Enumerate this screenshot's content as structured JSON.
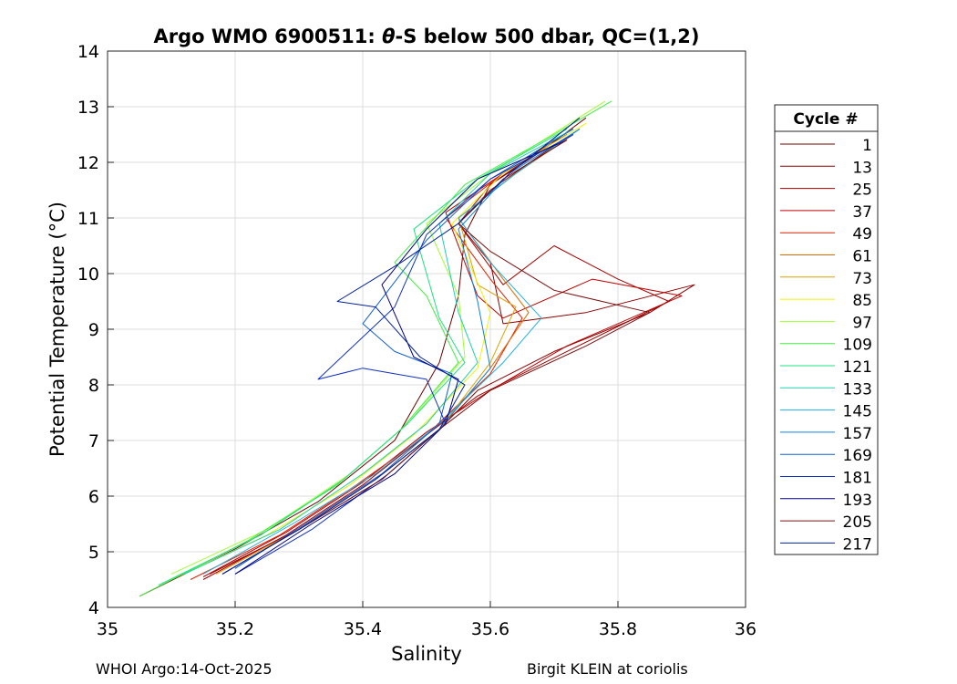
{
  "chart_data": {
    "type": "line",
    "title": "Argo WMO 6900511: θ-S below 500 dbar,  QC=(1,2)",
    "title_parts": {
      "prefix": "Argo WMO 6900511: ",
      "symbol": "θ",
      "suffix": "-S below 500 dbar,  QC=(1,2)"
    },
    "xlabel": "Salinity",
    "ylabel": "Potential Temperature (°C)",
    "xlim": [
      35,
      36
    ],
    "ylim": [
      4,
      14
    ],
    "xticks": [
      35,
      35.2,
      35.4,
      35.6,
      35.8,
      36
    ],
    "xtick_labels": [
      "35",
      "35.2",
      "35.4",
      "35.6",
      "35.8",
      "36"
    ],
    "yticks": [
      4,
      5,
      6,
      7,
      8,
      9,
      10,
      11,
      12,
      13,
      14
    ],
    "ytick_labels": [
      "4",
      "5",
      "6",
      "7",
      "8",
      "9",
      "10",
      "11",
      "12",
      "13",
      "14"
    ],
    "grid": true,
    "legend": {
      "title": "Cycle #",
      "position": "right",
      "entries": [
        "1",
        "13",
        "25",
        "37",
        "49",
        "61",
        "73",
        "85",
        "97",
        "109",
        "121",
        "133",
        "145",
        "157",
        "169",
        "181",
        "193",
        "205",
        "217"
      ],
      "colors": [
        "#6b0000",
        "#8b0000",
        "#a50000",
        "#c00000",
        "#e02000",
        "#e06a00",
        "#e0a000",
        "#f0f000",
        "#a0ff30",
        "#40ee40",
        "#20e080",
        "#20d0b0",
        "#20b0e0",
        "#1080e0",
        "#1060d0",
        "#1030c0",
        "#000080",
        "#7a1010",
        "#00209a"
      ]
    },
    "series": [
      {
        "name": "1",
        "salinity": [
          35.05,
          35.2,
          35.33,
          35.45,
          35.52,
          35.55,
          35.56,
          35.6,
          35.68,
          35.75
        ],
        "theta": [
          4.2,
          5.05,
          5.9,
          7.0,
          8.4,
          9.6,
          10.7,
          11.6,
          12.2,
          12.8
        ]
      },
      {
        "name": "13",
        "salinity": [
          35.16,
          35.3,
          35.42,
          35.52,
          35.58,
          35.7,
          35.85,
          35.92,
          35.75,
          35.62,
          35.6,
          35.55,
          35.6,
          35.7
        ],
        "theta": [
          4.6,
          5.4,
          6.3,
          7.2,
          7.9,
          8.6,
          9.3,
          9.8,
          9.3,
          9.1,
          10.2,
          10.9,
          11.5,
          12.3
        ]
      },
      {
        "name": "25",
        "salinity": [
          35.15,
          35.28,
          35.4,
          35.5,
          35.58,
          35.72,
          35.88,
          35.8,
          35.7,
          35.62,
          35.55,
          35.6,
          35.7
        ],
        "theta": [
          4.5,
          5.3,
          6.2,
          7.1,
          7.8,
          8.6,
          9.5,
          9.9,
          10.5,
          9.8,
          10.9,
          11.6,
          12.4
        ]
      },
      {
        "name": "37",
        "salinity": [
          35.15,
          35.28,
          35.4,
          35.5,
          35.6,
          35.72,
          35.9,
          35.76,
          35.62,
          35.58,
          35.53,
          35.62,
          35.72
        ],
        "theta": [
          4.55,
          5.35,
          6.25,
          7.15,
          7.9,
          8.7,
          9.6,
          9.9,
          9.2,
          9.6,
          11.1,
          11.8,
          12.5
        ]
      },
      {
        "name": "49",
        "salinity": [
          35.13,
          35.27,
          35.39,
          35.5,
          35.6,
          35.65,
          35.6,
          35.53,
          35.62,
          35.72
        ],
        "theta": [
          4.5,
          5.3,
          6.2,
          7.1,
          8.2,
          9.2,
          9.9,
          11.0,
          11.8,
          12.5
        ]
      },
      {
        "name": "61",
        "salinity": [
          35.18,
          35.3,
          35.42,
          35.52,
          35.6,
          35.66,
          35.62,
          35.55,
          35.64,
          35.73
        ],
        "theta": [
          4.6,
          5.4,
          6.3,
          7.2,
          8.3,
          9.3,
          9.9,
          11.0,
          11.8,
          12.5
        ]
      },
      {
        "name": "73",
        "salinity": [
          35.17,
          35.3,
          35.42,
          35.52,
          35.6,
          35.64,
          35.58,
          35.55,
          35.64,
          35.74
        ],
        "theta": [
          4.6,
          5.4,
          6.3,
          7.2,
          8.4,
          9.4,
          9.8,
          11.0,
          11.8,
          12.6
        ]
      },
      {
        "name": "85",
        "salinity": [
          35.1,
          35.25,
          35.38,
          35.48,
          35.58,
          35.6,
          35.54,
          35.62,
          35.75
        ],
        "theta": [
          4.5,
          5.3,
          6.2,
          7.1,
          8.3,
          9.3,
          10.9,
          11.8,
          12.7
        ]
      },
      {
        "name": "97",
        "salinity": [
          35.1,
          35.25,
          35.38,
          35.47,
          35.56,
          35.55,
          35.5,
          35.6,
          35.78
        ],
        "theta": [
          4.6,
          5.4,
          6.4,
          7.3,
          8.5,
          9.6,
          10.9,
          11.8,
          13.1
        ]
      },
      {
        "name": "109",
        "salinity": [
          35.05,
          35.22,
          35.36,
          35.46,
          35.55,
          35.5,
          35.45,
          35.56,
          35.7,
          35.79
        ],
        "theta": [
          4.2,
          5.2,
          6.2,
          7.2,
          8.4,
          9.6,
          10.2,
          11.6,
          12.5,
          13.1
        ]
      },
      {
        "name": "121",
        "salinity": [
          35.08,
          35.24,
          35.37,
          35.47,
          35.56,
          35.52,
          35.48,
          35.58,
          35.72
        ],
        "theta": [
          4.4,
          5.3,
          6.3,
          7.3,
          8.4,
          9.2,
          10.8,
          11.7,
          12.6
        ]
      },
      {
        "name": "133",
        "salinity": [
          35.12,
          35.27,
          35.4,
          35.5,
          35.58,
          35.55,
          35.52,
          35.6,
          35.73
        ],
        "theta": [
          4.6,
          5.4,
          6.4,
          7.3,
          8.4,
          9.3,
          10.9,
          11.8,
          12.6
        ]
      },
      {
        "name": "145",
        "salinity": [
          35.15,
          35.29,
          35.42,
          35.52,
          35.62,
          35.68,
          35.6,
          35.55,
          35.64,
          35.74
        ],
        "theta": [
          4.6,
          5.5,
          6.4,
          7.3,
          8.4,
          9.2,
          10.2,
          11.0,
          11.8,
          12.6
        ]
      },
      {
        "name": "157",
        "salinity": [
          35.18,
          35.3,
          35.43,
          35.52,
          35.6,
          35.58,
          35.55,
          35.63,
          35.74
        ],
        "theta": [
          4.6,
          5.4,
          6.3,
          7.2,
          8.3,
          9.5,
          10.8,
          11.8,
          12.6
        ]
      },
      {
        "name": "169",
        "salinity": [
          35.2,
          35.31,
          35.43,
          35.52,
          35.54,
          35.45,
          35.4,
          35.5,
          35.6,
          35.73
        ],
        "theta": [
          4.7,
          5.5,
          6.4,
          7.3,
          8.2,
          8.6,
          9.1,
          10.6,
          11.7,
          12.6
        ]
      },
      {
        "name": "181",
        "salinity": [
          35.2,
          35.32,
          35.44,
          35.53,
          35.5,
          35.4,
          35.33,
          35.45,
          35.5,
          35.6,
          35.73
        ],
        "theta": [
          4.6,
          5.4,
          6.4,
          7.3,
          8.1,
          8.3,
          8.1,
          9.4,
          10.7,
          11.7,
          12.5
        ]
      },
      {
        "name": "193",
        "salinity": [
          35.2,
          35.32,
          35.45,
          35.53,
          35.55,
          35.48,
          35.43,
          35.5,
          35.58,
          35.72
        ],
        "theta": [
          4.6,
          5.5,
          6.4,
          7.3,
          8.1,
          8.5,
          9.8,
          10.8,
          11.7,
          12.4
        ]
      },
      {
        "name": "205",
        "salinity": [
          35.18,
          35.3,
          35.43,
          35.52,
          35.6,
          35.75,
          35.85,
          35.7,
          35.6,
          35.55,
          35.62,
          35.72
        ],
        "theta": [
          4.6,
          5.4,
          6.3,
          7.2,
          7.9,
          8.7,
          9.3,
          9.7,
          10.4,
          10.9,
          11.7,
          12.4
        ]
      },
      {
        "name": "217",
        "salinity": [
          35.18,
          35.3,
          35.42,
          35.52,
          35.56,
          35.49,
          35.42,
          35.36,
          35.46,
          35.55,
          35.63,
          35.74
        ],
        "theta": [
          4.6,
          5.4,
          6.3,
          7.2,
          8.0,
          8.5,
          9.4,
          9.5,
          10.2,
          10.9,
          11.8,
          12.8
        ]
      }
    ]
  },
  "footer": {
    "left": "WHOI Argo:14-Oct-2025",
    "right": "Birgit KLEIN at coriolis"
  }
}
